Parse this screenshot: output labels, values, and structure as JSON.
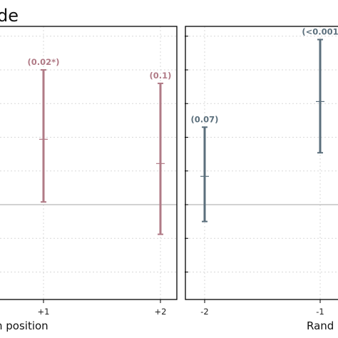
{
  "title": "de",
  "chart_data": [
    {
      "type": "errorbar",
      "panel": "left",
      "color": "#b07a86",
      "xlabel": "n position",
      "categories": [
        "+1",
        "+2"
      ],
      "points": [
        {
          "x": "+1",
          "estimate": 0.97,
          "low": 0.04,
          "high": 2.0,
          "p_label": "(0.02*)"
        },
        {
          "x": "+2",
          "estimate": 0.61,
          "low": -0.44,
          "high": 1.8,
          "p_label": "(0.1)"
        }
      ],
      "ylim": [
        -3.0,
        2.6
      ],
      "gridlines_y": [
        -2.0,
        -1.5,
        -1.0,
        -0.5,
        0,
        0.5,
        1.0,
        1.5,
        2.0,
        2.5
      ],
      "reference_line": 0,
      "grid": true
    },
    {
      "type": "errorbar",
      "panel": "right",
      "color": "#5b6f7c",
      "xlabel": "Rand",
      "categories": [
        "-2",
        "-1"
      ],
      "points": [
        {
          "x": "-2",
          "estimate": 0.42,
          "low": -0.25,
          "high": 1.15,
          "p_label": "(0.07)"
        },
        {
          "x": "-1",
          "estimate": 1.53,
          "low": 0.77,
          "high": 2.45,
          "p_label": "(<0.001"
        }
      ],
      "ylim": [
        -3.0,
        2.6
      ],
      "gridlines_y": [
        -2.0,
        -1.5,
        -1.0,
        -0.5,
        0,
        0.5,
        1.0,
        1.5,
        2.0,
        2.5
      ],
      "reference_line": 0,
      "grid": true
    }
  ]
}
